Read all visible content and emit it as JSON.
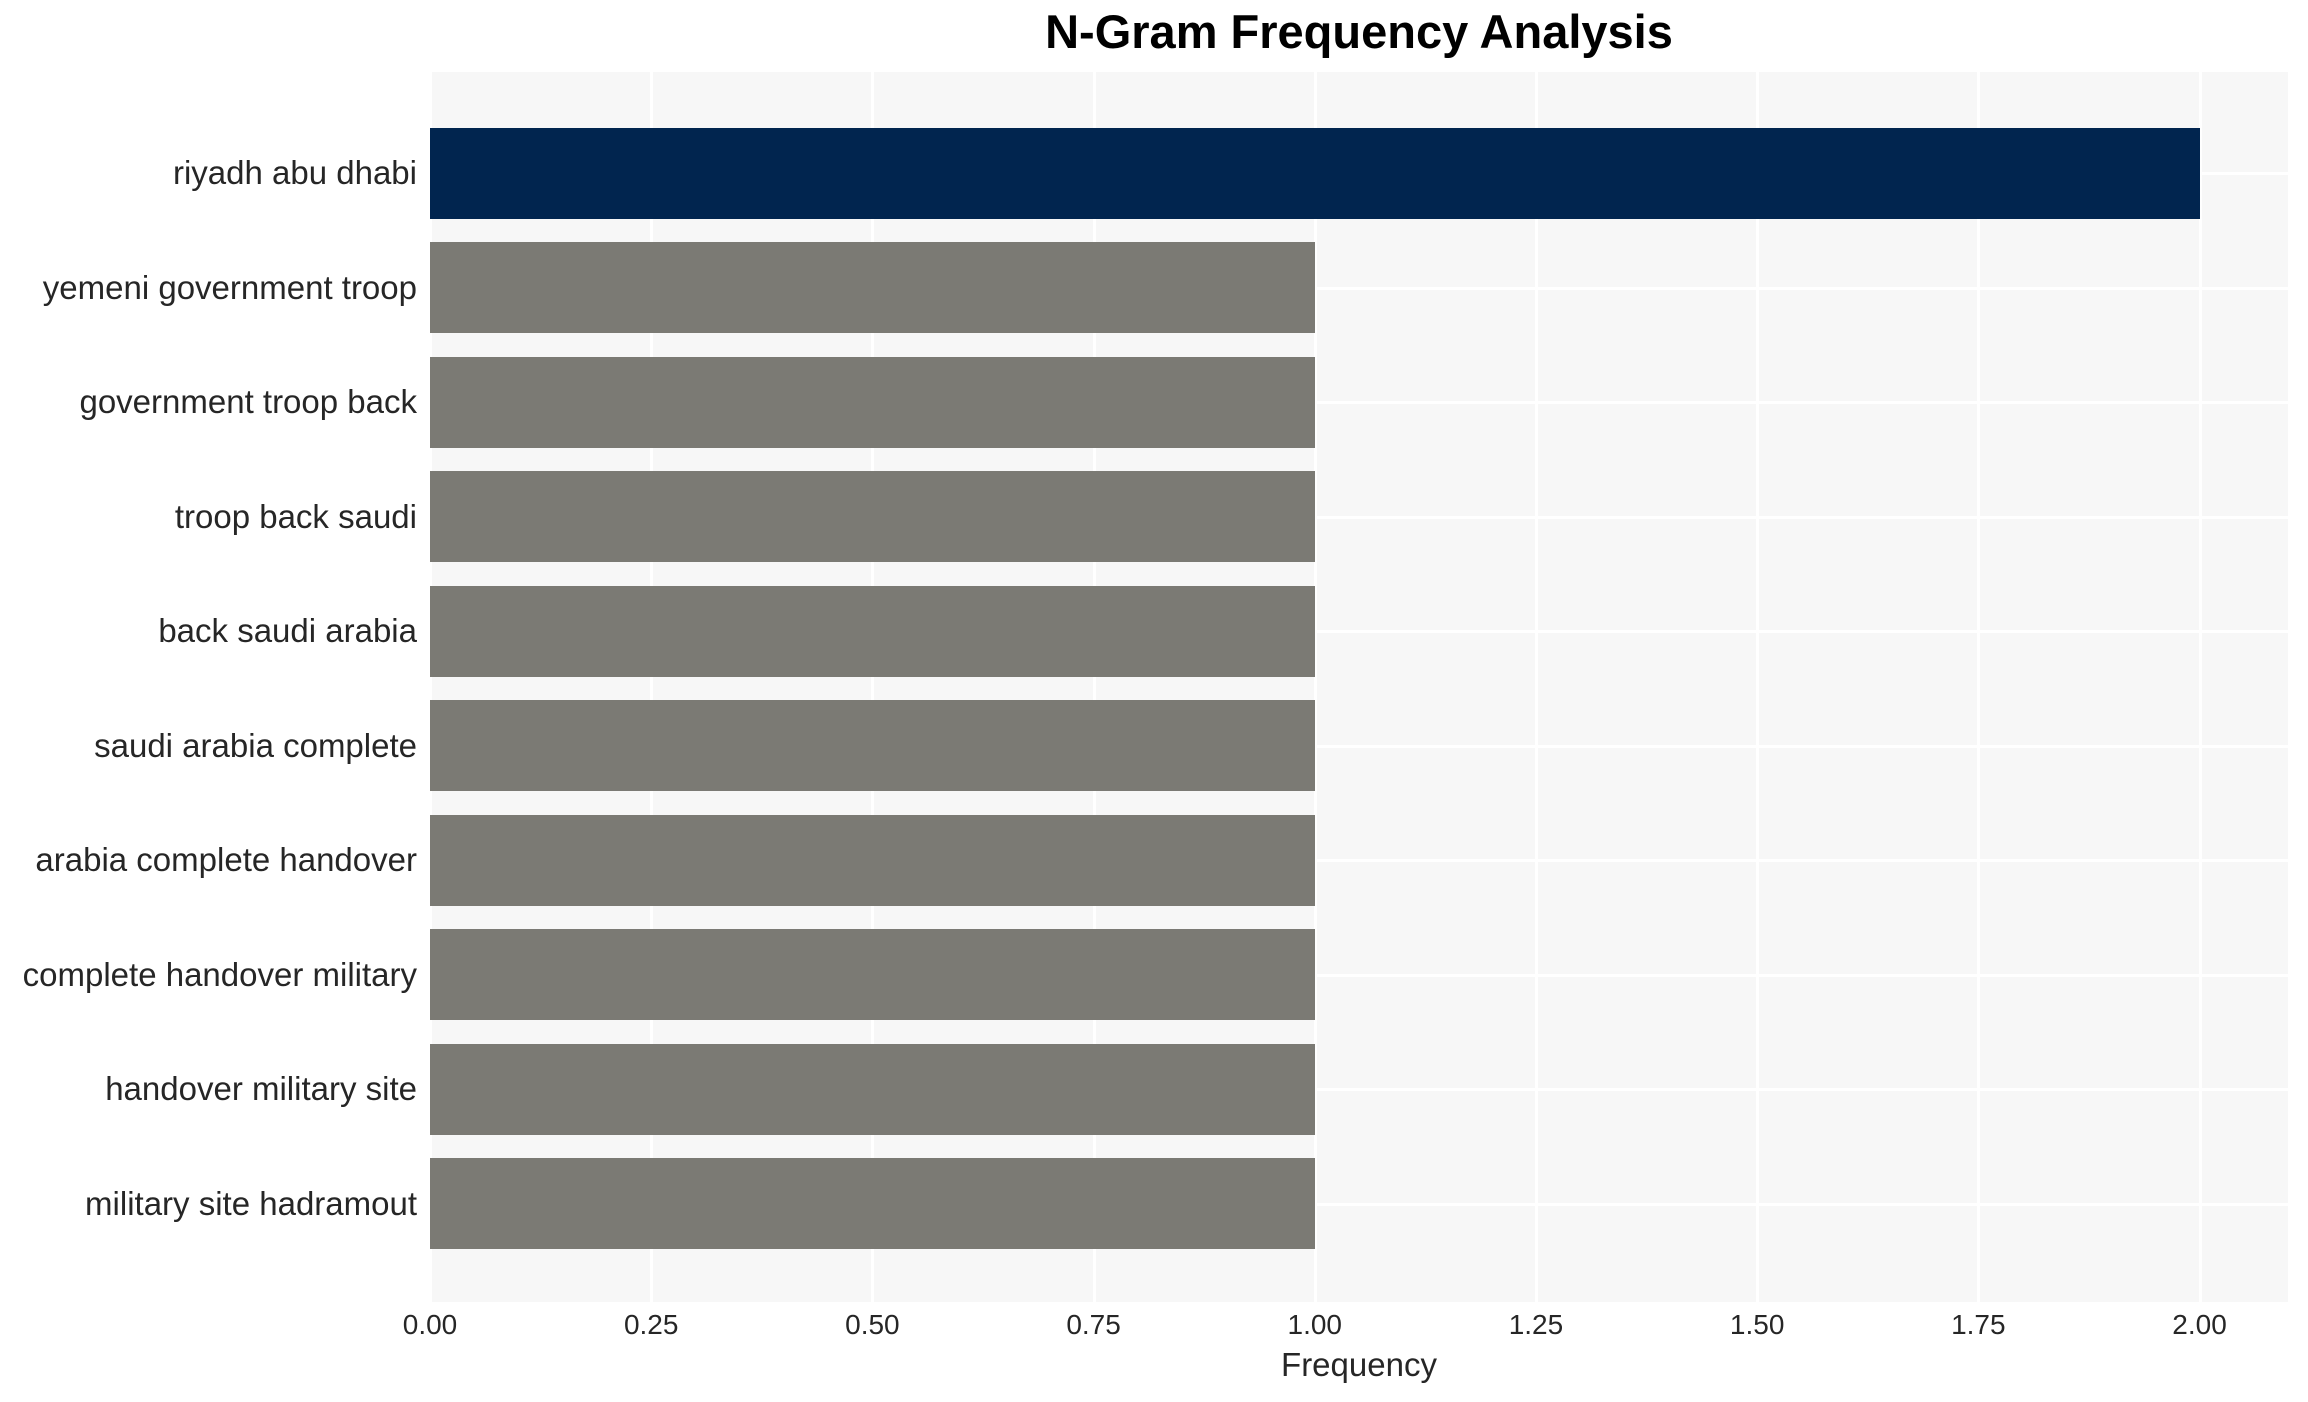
{
  "title": "N-Gram Frequency Analysis",
  "chart_data": {
    "type": "bar",
    "orientation": "horizontal",
    "title": "N-Gram Frequency Analysis",
    "xlabel": "Frequency",
    "ylabel": "",
    "categories": [
      "riyadh abu dhabi",
      "yemeni government troop",
      "government troop back",
      "troop back saudi",
      "back saudi arabia",
      "saudi arabia complete",
      "arabia complete handover",
      "complete handover military",
      "handover military site",
      "military site hadramout"
    ],
    "values": [
      2,
      1,
      1,
      1,
      1,
      1,
      1,
      1,
      1,
      1
    ],
    "highlight_index": 0,
    "xlim": [
      0,
      2.1
    ],
    "xtick_values": [
      0,
      0.25,
      0.5,
      0.75,
      1.0,
      1.25,
      1.5,
      1.75,
      2.0
    ],
    "xtick_labels": [
      "0.00",
      "0.25",
      "0.50",
      "0.75",
      "1.00",
      "1.25",
      "1.50",
      "1.75",
      "2.00"
    ],
    "grid": true,
    "legend": false,
    "colors": {
      "highlight_bar": "#01254f",
      "default_bar": "#7b7a74",
      "plot_background": "#f7f7f7",
      "gridline": "#ffffff",
      "tick_text": "#262626",
      "title_text": "#000000"
    }
  }
}
